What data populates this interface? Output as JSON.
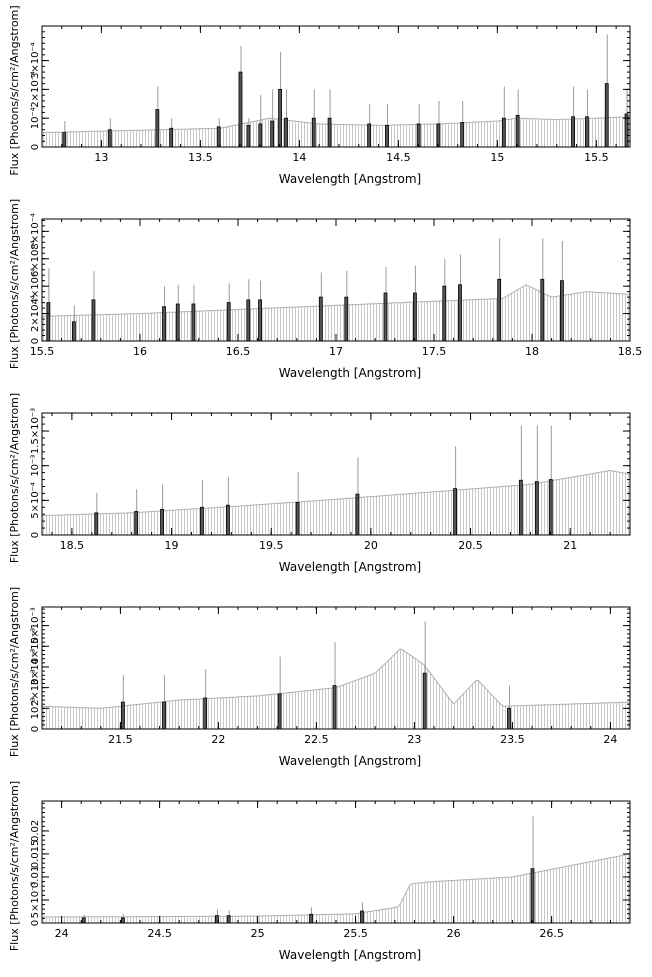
{
  "chart_data": [
    {
      "type": "bar",
      "xlabel": "Wavelength [Angstrom]",
      "ylabel": "Flux [Photons/s/cm²/Angstrom]",
      "xlim": [
        12.7,
        15.67
      ],
      "ylim": [
        0,
        0.00042
      ],
      "x_ticks": [
        13,
        13.5,
        14,
        14.5,
        15,
        15.5
      ],
      "x_tick_labels": [
        "13",
        "13.5",
        "14",
        "14.5",
        "15",
        "15.5"
      ],
      "y_ticks": [
        0,
        0.0001,
        0.0002,
        0.0003
      ],
      "y_tick_labels": [
        "0",
        "10⁻⁴",
        "2×10⁻⁴",
        "3×10⁻⁴"
      ],
      "model_curve": [
        [
          12.7,
          5e-05
        ],
        [
          13.0,
          5.5e-05
        ],
        [
          13.3,
          6e-05
        ],
        [
          13.6,
          6.5e-05
        ],
        [
          13.85,
          0.0001
        ],
        [
          14.1,
          8e-05
        ],
        [
          14.4,
          7.5e-05
        ],
        [
          14.7,
          8e-05
        ],
        [
          15.0,
          9e-05
        ],
        [
          15.1,
          0.0001
        ],
        [
          15.3,
          9.5e-05
        ],
        [
          15.5,
          0.0001
        ],
        [
          15.67,
          0.000105
        ]
      ],
      "bars": [
        [
          12.81,
          5e-05,
          9e-05
        ],
        [
          13.04,
          6e-05,
          0.0001
        ],
        [
          13.28,
          0.00013,
          0.00021
        ],
        [
          13.35,
          6.5e-05,
          0.0001
        ],
        [
          13.59,
          7e-05,
          0.0001
        ],
        [
          13.7,
          0.00026,
          0.00035
        ],
        [
          13.74,
          7.5e-05,
          0.0001
        ],
        [
          13.8,
          8e-05,
          0.00018
        ],
        [
          13.86,
          9e-05,
          0.0002
        ],
        [
          13.9,
          0.0002,
          0.00033
        ],
        [
          13.93,
          0.0001,
          0.0002
        ],
        [
          14.07,
          0.0001,
          0.0002
        ],
        [
          14.15,
          0.0001,
          0.0002
        ],
        [
          14.35,
          8e-05,
          0.00015
        ],
        [
          14.44,
          7.5e-05,
          0.00015
        ],
        [
          14.6,
          8e-05,
          0.00015
        ],
        [
          14.7,
          8e-05,
          0.00016
        ],
        [
          14.82,
          8.5e-05,
          0.00016
        ],
        [
          15.03,
          0.0001,
          0.00021
        ],
        [
          15.1,
          0.00011,
          0.0002
        ],
        [
          15.38,
          0.000105,
          0.00021
        ],
        [
          15.45,
          0.000105,
          0.0002
        ],
        [
          15.55,
          0.00022,
          0.00039
        ],
        [
          15.65,
          0.000115,
          0.0002
        ]
      ]
    },
    {
      "type": "bar",
      "xlabel": "Wavelength [Angstrom]",
      "ylabel": "Flux [Photons/s/cm²/Angstrom]",
      "xlim": [
        15.5,
        18.5
      ],
      "ylim": [
        0,
        0.00089
      ],
      "x_ticks": [
        15.5,
        16,
        16.5,
        17,
        17.5,
        18,
        18.5
      ],
      "x_tick_labels": [
        "15.5",
        "16",
        "16.5",
        "17",
        "17.5",
        "18",
        "18.5"
      ],
      "y_ticks": [
        0,
        0.0002,
        0.0004,
        0.0006,
        0.0008
      ],
      "y_tick_labels": [
        "0",
        "2×10⁻⁴",
        "4×10⁻⁴",
        "6×10⁻⁴",
        "8×10⁻⁴"
      ],
      "model_curve": [
        [
          15.5,
          0.00018
        ],
        [
          16.0,
          0.0002
        ],
        [
          16.5,
          0.00023
        ],
        [
          17.0,
          0.00026
        ],
        [
          17.5,
          0.00029
        ],
        [
          17.85,
          0.00031
        ],
        [
          17.97,
          0.00041
        ],
        [
          18.1,
          0.00032
        ],
        [
          18.28,
          0.00036
        ],
        [
          18.5,
          0.00034
        ]
      ],
      "bars": [
        [
          15.53,
          0.00028,
          0.00053
        ],
        [
          15.66,
          0.00014,
          0.00026
        ],
        [
          15.76,
          0.0003,
          0.00051
        ],
        [
          16.12,
          0.00025,
          0.0004
        ],
        [
          16.19,
          0.00027,
          0.00041
        ],
        [
          16.27,
          0.00027,
          0.00041
        ],
        [
          16.45,
          0.00028,
          0.00042
        ],
        [
          16.55,
          0.0003,
          0.00045
        ],
        [
          16.61,
          0.0003,
          0.00044
        ],
        [
          16.92,
          0.00032,
          0.0005
        ],
        [
          17.05,
          0.00032,
          0.00051
        ],
        [
          17.25,
          0.00035,
          0.00054
        ],
        [
          17.4,
          0.00035,
          0.00055
        ],
        [
          17.55,
          0.0004,
          0.0006
        ],
        [
          17.63,
          0.00041,
          0.00063
        ],
        [
          17.83,
          0.00045,
          0.00075
        ],
        [
          18.05,
          0.00045,
          0.00075
        ],
        [
          18.15,
          0.00044,
          0.00073
        ]
      ]
    },
    {
      "type": "bar",
      "xlabel": "Wavelength [Angstrom]",
      "ylabel": "Flux [Photons/s/cm²/Angstrom]",
      "xlim": [
        18.35,
        21.3
      ],
      "ylim": [
        0,
        0.00176
      ],
      "x_ticks": [
        18.5,
        19,
        19.5,
        20,
        20.5,
        21
      ],
      "x_tick_labels": [
        "18.5",
        "19",
        "19.5",
        "20",
        "20.5",
        "21"
      ],
      "y_ticks": [
        0,
        0.0005,
        0.001,
        0.0015
      ],
      "y_tick_labels": [
        "0",
        "5×10⁻⁴",
        "10⁻³",
        "1.5×10⁻³"
      ],
      "model_curve": [
        [
          18.35,
          0.00028
        ],
        [
          18.8,
          0.00032
        ],
        [
          19.3,
          0.00041
        ],
        [
          19.8,
          0.00051
        ],
        [
          20.3,
          0.00062
        ],
        [
          20.8,
          0.00073
        ],
        [
          21.2,
          0.00093
        ],
        [
          21.3,
          0.00088
        ]
      ],
      "bars": [
        [
          18.62,
          0.00032,
          0.00061
        ],
        [
          18.82,
          0.00034,
          0.00066
        ],
        [
          18.95,
          0.00037,
          0.00073
        ],
        [
          19.15,
          0.0004,
          0.00079
        ],
        [
          19.28,
          0.00043,
          0.00084
        ],
        [
          19.63,
          0.00047,
          0.00091
        ],
        [
          19.93,
          0.00059,
          0.00112
        ],
        [
          20.42,
          0.00067,
          0.00128
        ],
        [
          20.75,
          0.00079,
          0.00158
        ],
        [
          20.83,
          0.00077,
          0.00158
        ],
        [
          20.9,
          0.0008,
          0.00158
        ]
      ]
    },
    {
      "type": "bar",
      "xlabel": "Wavelength [Angstrom]",
      "ylabel": "Flux [Photons/s/cm²/Angstrom]",
      "xlim": [
        21.1,
        24.1
      ],
      "ylim": [
        0,
        0.0059
      ],
      "x_ticks": [
        21.5,
        22,
        22.5,
        23,
        23.5,
        24
      ],
      "x_tick_labels": [
        "21.5",
        "22",
        "22.5",
        "23",
        "23.5",
        "24"
      ],
      "y_ticks": [
        0,
        0.001,
        0.002,
        0.003,
        0.004,
        0.005
      ],
      "y_tick_labels": [
        "0",
        "10⁻³",
        "2×10⁻³",
        "3×10⁻³",
        "4×10⁻³",
        "5×10⁻³"
      ],
      "model_curve": [
        [
          21.1,
          0.0011
        ],
        [
          21.4,
          0.001
        ],
        [
          21.8,
          0.0014
        ],
        [
          22.2,
          0.0016
        ],
        [
          22.6,
          0.002
        ],
        [
          22.8,
          0.0027
        ],
        [
          22.93,
          0.0039
        ],
        [
          23.05,
          0.0031
        ],
        [
          23.2,
          0.0012
        ],
        [
          23.32,
          0.0024
        ],
        [
          23.45,
          0.0011
        ],
        [
          24.1,
          0.0013
        ]
      ],
      "bars": [
        [
          21.51,
          0.0013,
          0.0026
        ],
        [
          21.72,
          0.0013,
          0.0026
        ],
        [
          21.93,
          0.0015,
          0.0029
        ],
        [
          22.31,
          0.0017,
          0.0035
        ],
        [
          22.59,
          0.0021,
          0.0042
        ],
        [
          23.05,
          0.0027,
          0.0052
        ],
        [
          23.48,
          0.001,
          0.0021
        ]
      ]
    },
    {
      "type": "bar",
      "xlabel": "Wavelength [Angstrom]",
      "ylabel": "Flux [Photons/s/cm²/Angstrom]",
      "xlim": [
        23.9,
        26.9
      ],
      "ylim": [
        0,
        0.0265
      ],
      "x_ticks": [
        24,
        24.5,
        25,
        25.5,
        26,
        26.5
      ],
      "x_tick_labels": [
        "24",
        "24.5",
        "25",
        "25.5",
        "26",
        "26.5"
      ],
      "y_ticks": [
        0,
        0.005,
        0.01,
        0.015,
        0.02
      ],
      "y_tick_labels": [
        "0",
        "5×10⁻³",
        "0.01",
        "0.015",
        "0.02"
      ],
      "model_curve": [
        [
          23.9,
          0.0013
        ],
        [
          24.5,
          0.0014
        ],
        [
          25.0,
          0.0015
        ],
        [
          25.5,
          0.002
        ],
        [
          25.72,
          0.0035
        ],
        [
          25.78,
          0.0085
        ],
        [
          25.9,
          0.009
        ],
        [
          26.3,
          0.01
        ],
        [
          26.9,
          0.015
        ]
      ],
      "bars": [
        [
          24.11,
          0.0011,
          0.0018
        ],
        [
          24.31,
          0.0011,
          0.002
        ],
        [
          24.79,
          0.0016,
          0.003
        ],
        [
          24.85,
          0.0016,
          0.0028
        ],
        [
          25.27,
          0.0019,
          0.0034
        ],
        [
          25.53,
          0.0026,
          0.0045
        ],
        [
          26.4,
          0.0118,
          0.0232
        ]
      ]
    }
  ]
}
